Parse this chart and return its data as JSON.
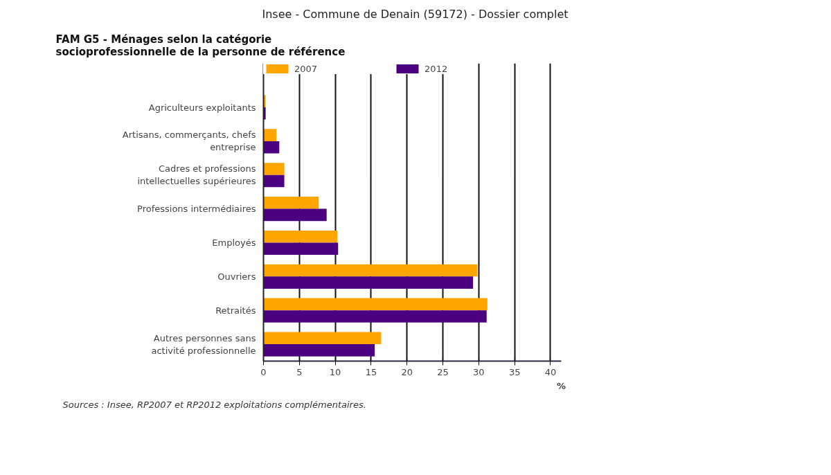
{
  "chart_data": {
    "type": "bar",
    "orientation": "horizontal",
    "title": "FAM G5 - Ménages selon la catégorie\nsocioprofessionnelle de la personne de référence",
    "xlabel": "%",
    "categories": [
      "Agriculteurs exploitants",
      "Artisans, commerçants, chefs\nentreprise",
      "Cadres et professions\nintellectuelles supérieures",
      "Professions intermédiaires",
      "Employés",
      "Ouvriers",
      "Retraités",
      "Autres personnes sans\nactivité professionnelle"
    ],
    "series": [
      {
        "name": "2007",
        "color": "#ffa500",
        "values": [
          0.3,
          1.8,
          2.9,
          7.7,
          10.3,
          29.8,
          31.2,
          16.4
        ]
      },
      {
        "name": "2012",
        "color": "#4b0082",
        "values": [
          0.3,
          2.2,
          2.9,
          8.8,
          10.4,
          29.2,
          31.1,
          15.5
        ]
      }
    ],
    "xlim": [
      0,
      41.5
    ],
    "xticks": [
      0,
      5,
      10,
      15,
      20,
      25,
      30,
      35,
      40
    ],
    "grid": "x",
    "legend": "top",
    "annotations": [
      "Insee - Commune de Denain (59172) - Dossier complet",
      "Sources : Insee, RP2007 et RP2012 exploitations complémentaires."
    ]
  }
}
